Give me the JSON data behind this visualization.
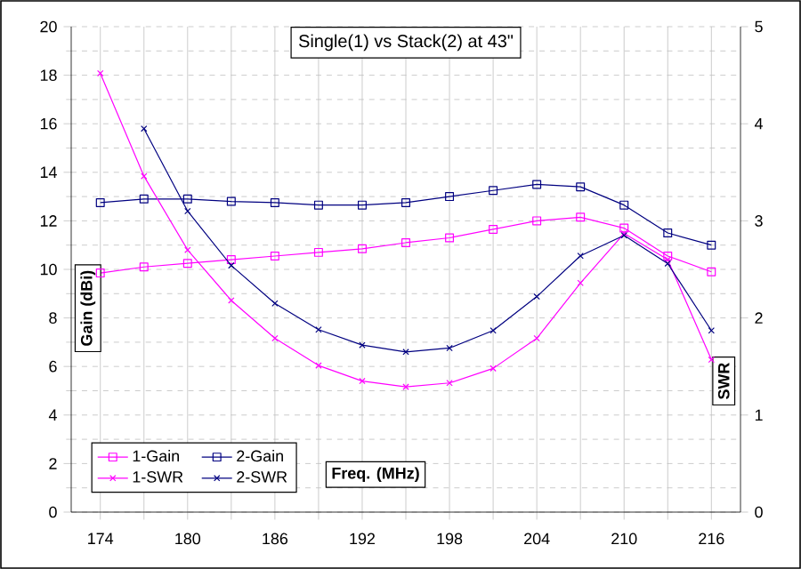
{
  "chart_data": {
    "type": "line",
    "subtitle": "Single(1) vs Stack(2) at 43\"",
    "xlabel": "Freq. (MHz)",
    "ylabel": "Gain (dBi)",
    "y2label": "SWR",
    "x": [
      174,
      177,
      180,
      183,
      186,
      189,
      192,
      195,
      198,
      201,
      204,
      207,
      210,
      213,
      216
    ],
    "xlim": [
      172,
      218
    ],
    "xticks": [
      174,
      {
        "value": 177,
        "label": null
      },
      180,
      {
        "value": 183,
        "label": null
      },
      186,
      {
        "value": 189,
        "label": null
      },
      192,
      {
        "value": 195,
        "label": null
      },
      198,
      {
        "value": 201,
        "label": null
      },
      204,
      {
        "value": 207,
        "label": null
      },
      210,
      {
        "value": 213,
        "label": null
      },
      216
    ],
    "ylim": [
      0,
      20
    ],
    "yticks": [
      0,
      2,
      4,
      6,
      8,
      10,
      12,
      14,
      16,
      18,
      20
    ],
    "y2lim": [
      0,
      5
    ],
    "y2ticks": [
      0,
      1,
      2,
      3,
      4,
      5
    ],
    "grid": true,
    "legend": "bottom left",
    "series": [
      {
        "name": "1-Gain",
        "color": "#ff00ff",
        "marker": "square",
        "values": [
          9.85,
          10.1,
          10.25,
          10.4,
          10.55,
          10.7,
          10.85,
          11.1,
          11.3,
          11.65,
          12.0,
          12.15,
          11.7,
          10.55,
          9.9
        ]
      },
      {
        "name": "2-Gain",
        "color": "#000080",
        "marker": "square",
        "values": [
          12.75,
          12.9,
          12.9,
          12.8,
          12.75,
          12.65,
          12.65,
          12.75,
          13.0,
          13.25,
          13.5,
          13.4,
          12.65,
          11.5,
          11.0
        ]
      },
      {
        "name": "1-SWR",
        "color": "#ff00ff",
        "marker": "cross",
        "axis": "y2",
        "values": [
          4.52,
          3.46,
          2.7,
          2.18,
          1.79,
          1.51,
          1.35,
          1.29,
          1.33,
          1.48,
          1.79,
          2.36,
          2.87,
          2.6,
          1.57
        ]
      },
      {
        "name": "2-SWR",
        "color": "#000080",
        "marker": "cross",
        "axis": "y2",
        "values": [
          null,
          3.95,
          3.1,
          2.54,
          2.15,
          1.88,
          1.72,
          1.65,
          1.69,
          1.87,
          2.22,
          2.64,
          2.85,
          2.56,
          1.87
        ]
      }
    ]
  }
}
